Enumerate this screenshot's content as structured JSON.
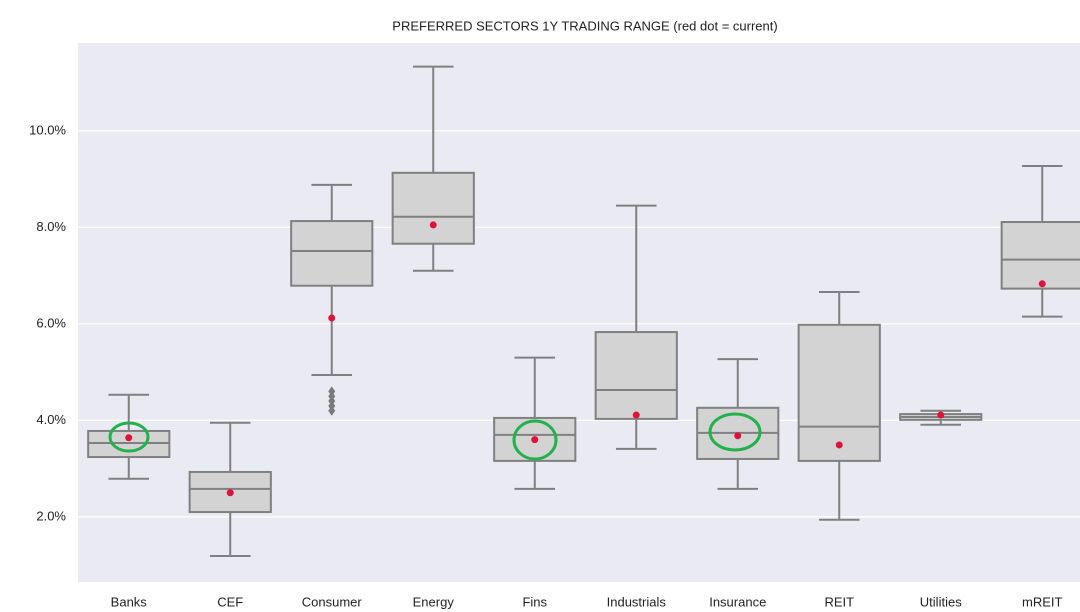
{
  "chart_data": {
    "type": "box",
    "title": "PREFERRED SECTORS 1Y TRADING RANGE (red dot = current)",
    "categories": [
      "Banks",
      "CEF",
      "Consumer",
      "Energy",
      "Fins",
      "Industrials",
      "Insurance",
      "REIT",
      "Utilities",
      "mREIT"
    ],
    "whisker_low": [
      2.79,
      1.19,
      4.94,
      7.1,
      2.58,
      3.41,
      2.58,
      1.94,
      3.91,
      6.15
    ],
    "q1": [
      3.24,
      2.1,
      6.79,
      7.66,
      3.16,
      4.03,
      3.2,
      3.16,
      4.01,
      6.73
    ],
    "median": [
      3.53,
      2.58,
      7.51,
      8.22,
      3.7,
      4.63,
      3.74,
      3.87,
      4.07,
      7.33
    ],
    "q3": [
      3.78,
      2.93,
      8.13,
      9.13,
      4.05,
      5.83,
      4.26,
      5.98,
      4.13,
      8.11
    ],
    "whisker_high": [
      4.53,
      3.95,
      8.88,
      11.33,
      5.3,
      8.45,
      5.27,
      6.66,
      4.2,
      9.27
    ],
    "current": [
      3.64,
      2.5,
      6.12,
      8.05,
      3.6,
      4.11,
      3.68,
      3.49,
      4.11,
      6.83
    ],
    "outliers": [
      [],
      [],
      [
        4.6,
        4.5,
        4.4,
        4.3,
        4.2
      ],
      [],
      [],
      [],
      [],
      [],
      [],
      []
    ],
    "box_color": "#d3d3d3",
    "line_color": "#808080",
    "current_color": "#dc143c",
    "outlier_color": "#7a7a7a",
    "background": "#eaeaf2",
    "grid": true,
    "ylim": [
      0.65,
      11.82
    ],
    "yticks": [
      {
        "value": 2,
        "label": "2.0%"
      },
      {
        "value": 4,
        "label": "4.0%"
      },
      {
        "value": 6,
        "label": "6.0%"
      },
      {
        "value": 8,
        "label": "8.0%"
      },
      {
        "value": 10,
        "label": "10.0%"
      }
    ]
  }
}
